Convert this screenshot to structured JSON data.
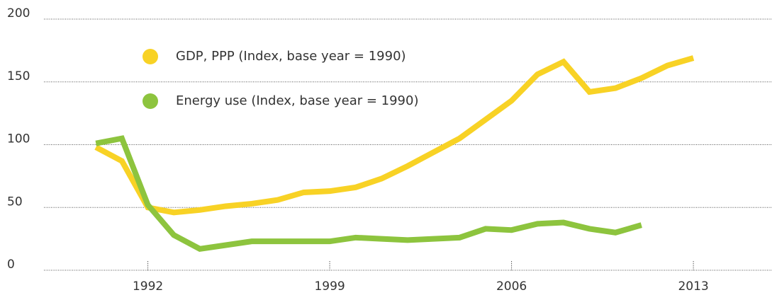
{
  "chart_data": {
    "type": "line",
    "x": [
      1990,
      1991,
      1992,
      1993,
      1994,
      1995,
      1996,
      1997,
      1998,
      1999,
      2000,
      2001,
      2002,
      2003,
      2004,
      2005,
      2006,
      2007,
      2008,
      2009,
      2010,
      2011,
      2012,
      2013
    ],
    "series": [
      {
        "name": "GDP, PPP (Index, base year = 1990)",
        "color": "#f8d225",
        "values": [
          98,
          87,
          50,
          46,
          48,
          51,
          53,
          56,
          62,
          63,
          66,
          73,
          83,
          94,
          105,
          120,
          135,
          156,
          166,
          142,
          145,
          153,
          163,
          169
        ]
      },
      {
        "name": "Energy use (Index, base year = 1990)",
        "color": "#8dc43e",
        "values": [
          101,
          105,
          52,
          28,
          17,
          20,
          23,
          23,
          23,
          23,
          26,
          25,
          24,
          25,
          26,
          33,
          32,
          37,
          38,
          33,
          30,
          36,
          null,
          null
        ]
      }
    ],
    "xlim": [
      1988,
      2016
    ],
    "xticks": [
      1992,
      1999,
      2006,
      2013
    ],
    "ylim": [
      0,
      200
    ],
    "yticks": [
      0,
      50,
      100,
      150,
      200
    ],
    "grid": true
  }
}
